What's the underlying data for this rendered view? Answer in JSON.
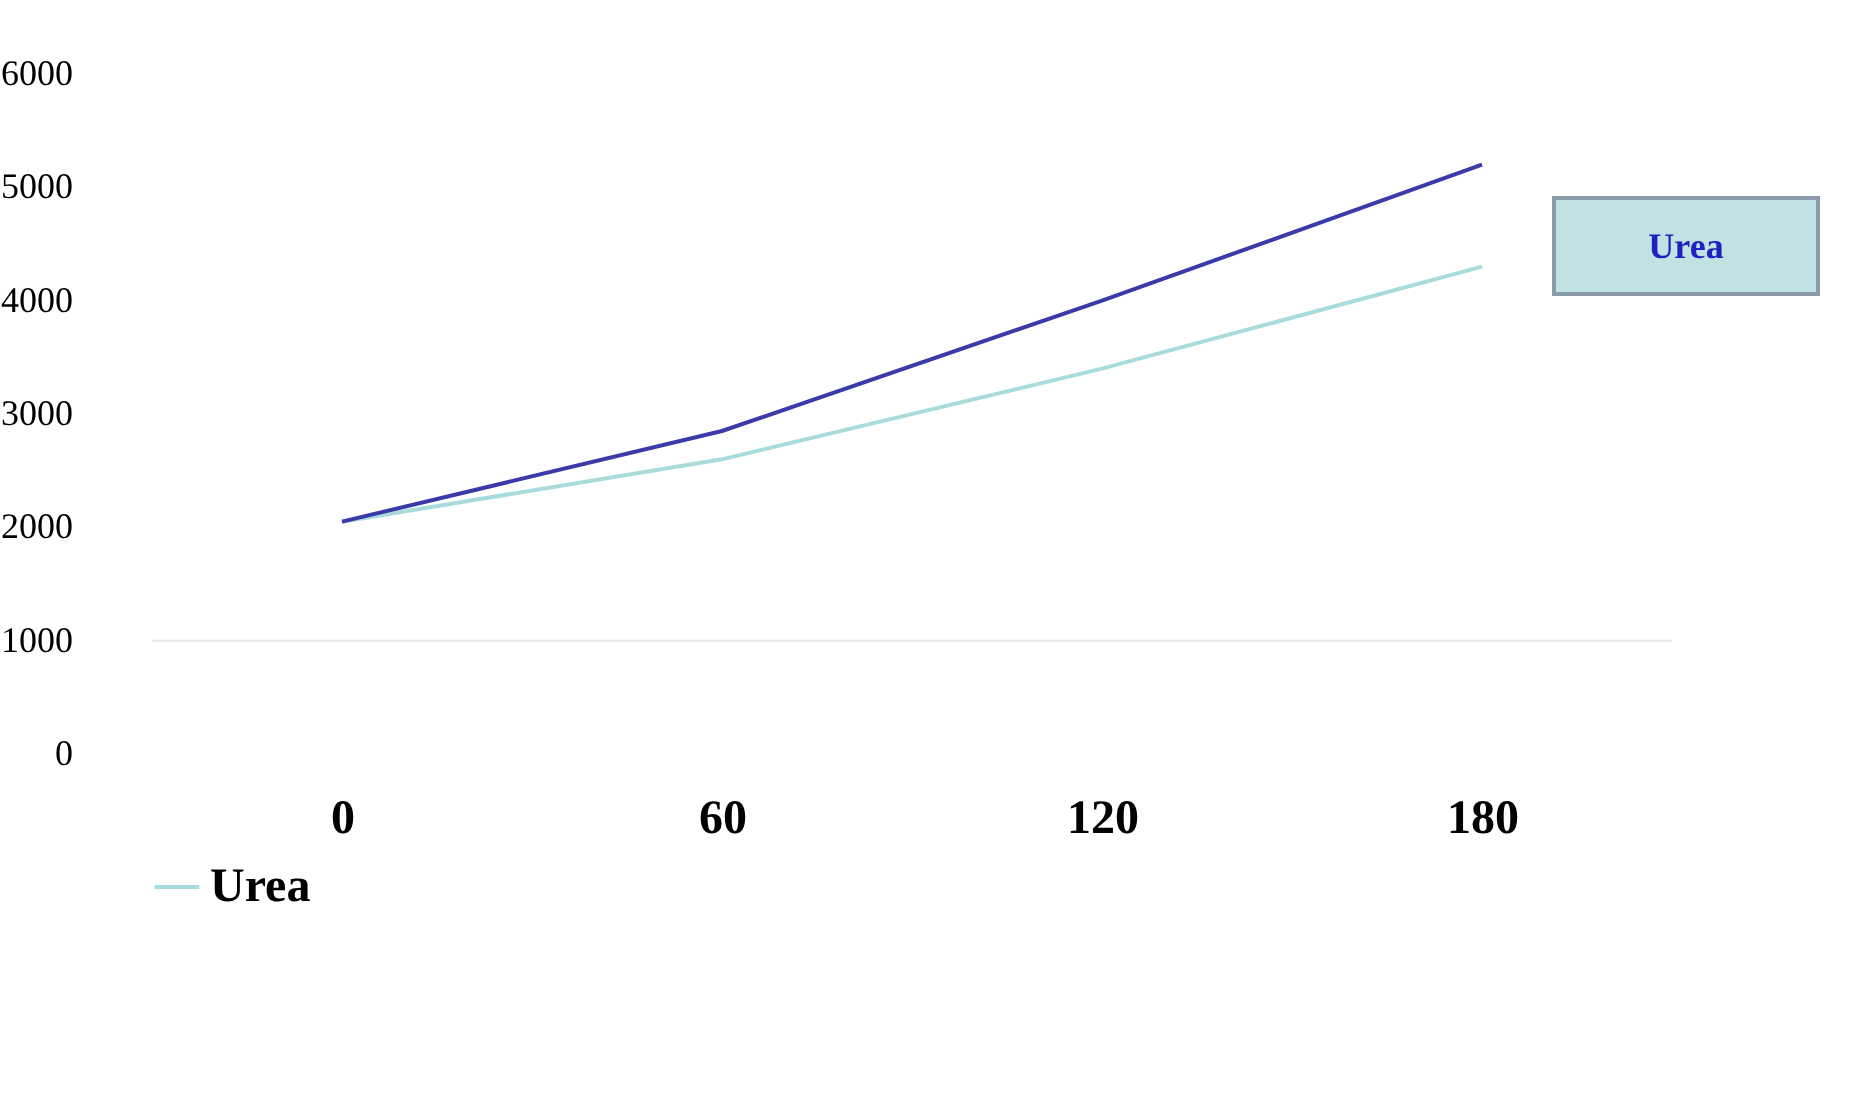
{
  "chart_data": {
    "type": "line",
    "categories": [
      "0",
      "60",
      "120",
      "180"
    ],
    "series": [
      {
        "name": "Urea",
        "color": "#a8dcdc",
        "values": [
          2050,
          2600,
          3400,
          4300
        ]
      },
      {
        "color": "#3a3aa8",
        "values": [
          2050,
          2850,
          4000,
          5200
        ]
      }
    ],
    "ylim": [
      0,
      6000
    ],
    "yticks": [
      0,
      1000,
      2000,
      3000,
      4000,
      5000,
      6000
    ],
    "ref_lines": [
      {
        "axis": "y",
        "value": 1000,
        "color": "#e6e6e6"
      }
    ],
    "annotations": [
      "Urea"
    ],
    "legend": "bottom"
  }
}
